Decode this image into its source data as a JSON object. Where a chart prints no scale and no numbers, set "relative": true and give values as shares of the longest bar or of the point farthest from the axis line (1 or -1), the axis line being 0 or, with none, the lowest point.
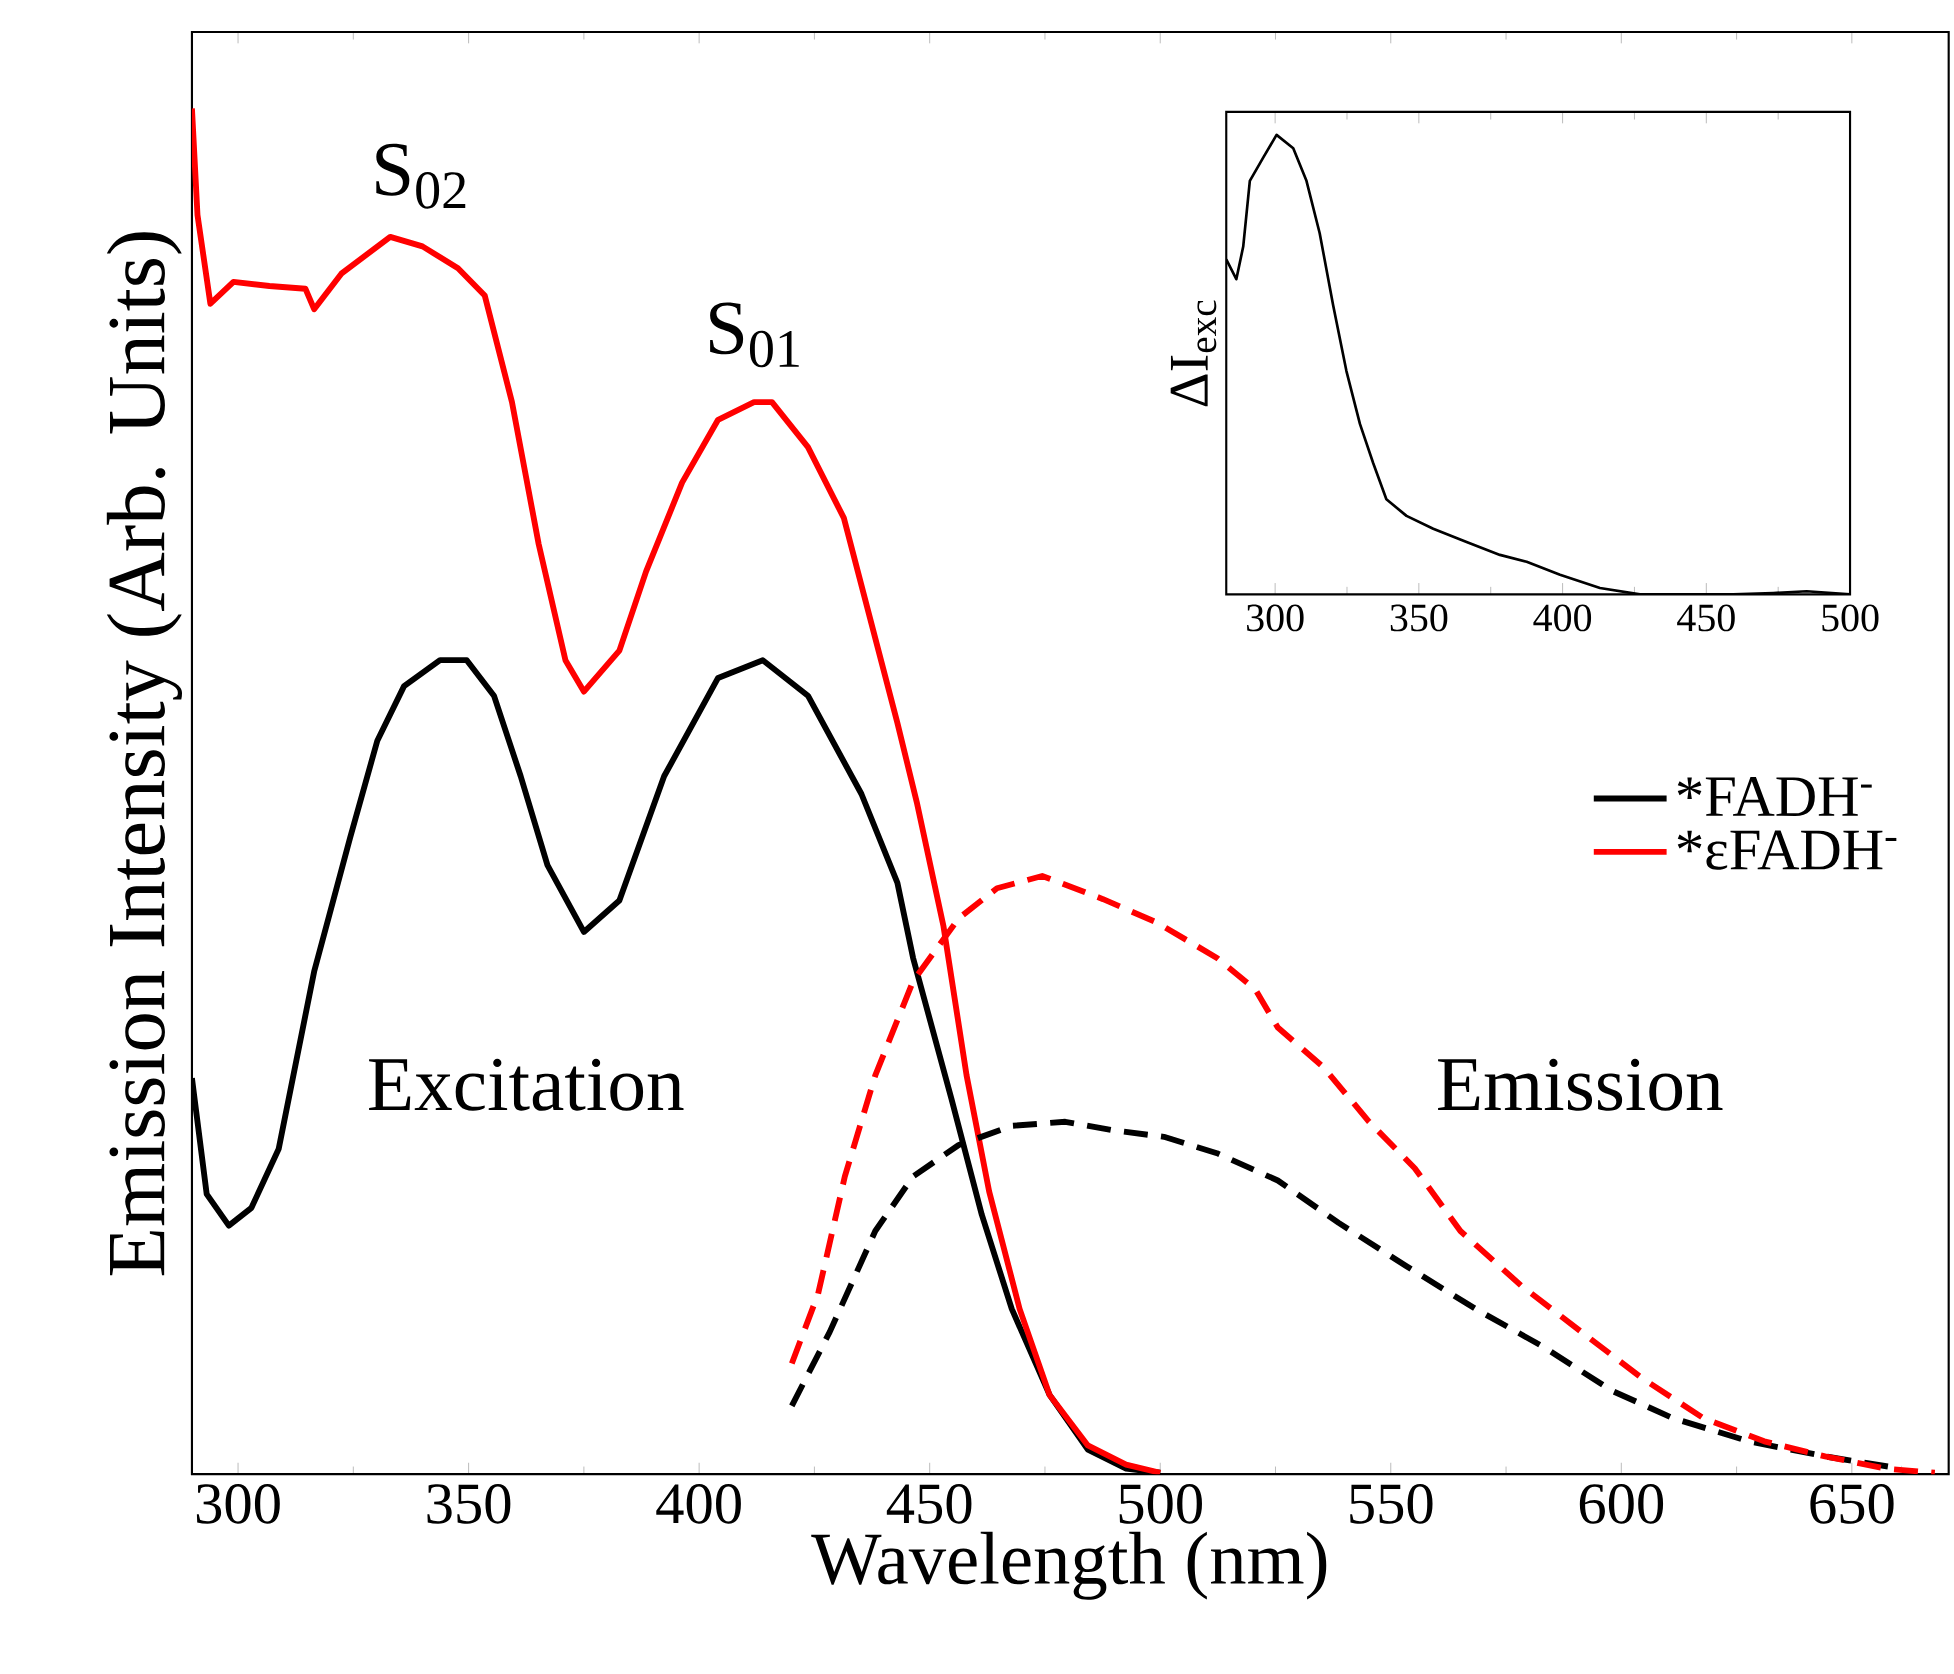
{
  "chart_data": [
    {
      "type": "line",
      "relative": true,
      "xlabel": "Wavelength (nm)",
      "ylabel": "Emission Intensity (Arb. Units)",
      "xlim": [
        290,
        671
      ],
      "xticks": [
        300,
        350,
        400,
        450,
        500,
        550,
        600,
        650
      ],
      "legend": "right",
      "annotations": [
        "S$_{02}$",
        "S$_{01}$",
        "Excitation",
        "Emission"
      ],
      "series": [
        {
          "name": "*FADH$^{-}$",
          "color": "#000000",
          "line_style": "solid",
          "x": [
            290,
            293.2,
            298,
            302.9,
            308.8,
            316.5,
            324.3,
            330.2,
            336,
            343.8,
            349.6,
            355.5,
            361.3,
            367.1,
            375,
            382.7,
            392.4,
            404.1,
            413.8,
            423.6,
            435.2,
            443,
            446.4,
            454.7,
            461.3,
            467.8,
            476,
            484.3,
            492.6,
            500
          ],
          "values": [
            0.29,
            0.205,
            0.182,
            0.195,
            0.238,
            0.368,
            0.466,
            0.537,
            0.577,
            0.596,
            0.596,
            0.57,
            0.511,
            0.446,
            0.397,
            0.42,
            0.511,
            0.583,
            0.596,
            0.57,
            0.498,
            0.433,
            0.378,
            0.275,
            0.19,
            0.121,
            0.058,
            0.018,
            0.004,
            0.001
          ]
        },
        {
          "name": "*εFADH$^{-}$",
          "color": "#ff0000",
          "line_style": "solid",
          "x": [
            290,
            291.2,
            294,
            299,
            306.8,
            314.6,
            316.5,
            322.4,
            333,
            340,
            347.7,
            353.5,
            359.4,
            365.2,
            371,
            375,
            382.7,
            388.5,
            396.3,
            404.1,
            411.9,
            415.8,
            423.6,
            431.4,
            443,
            447.2,
            453,
            458,
            462.9,
            469.5,
            476,
            484.3,
            492.6,
            500
          ],
          "values": [
            1.0,
            0.922,
            0.857,
            0.873,
            0.87,
            0.868,
            0.853,
            0.879,
            0.906,
            0.899,
            0.883,
            0.863,
            0.785,
            0.681,
            0.596,
            0.573,
            0.603,
            0.661,
            0.726,
            0.772,
            0.785,
            0.785,
            0.752,
            0.7,
            0.55,
            0.492,
            0.401,
            0.292,
            0.207,
            0.121,
            0.058,
            0.021,
            0.007,
            0.001
          ]
        },
        {
          "color": "#000000",
          "line_style": "dashed",
          "x": [
            420.1,
            428.3,
            438.2,
            446.4,
            456.3,
            467.8,
            479.4,
            489.3,
            500.8,
            512.3,
            525.5,
            538.7,
            553.5,
            568.4,
            583.2,
            598,
            611.2,
            627.7,
            644.2,
            660.7
          ],
          "values": [
            0.05,
            0.104,
            0.178,
            0.218,
            0.241,
            0.255,
            0.258,
            0.252,
            0.247,
            0.235,
            0.215,
            0.184,
            0.152,
            0.121,
            0.093,
            0.061,
            0.041,
            0.024,
            0.013,
            0.004
          ]
        },
        {
          "color": "#ff0000",
          "line_style": "dashed",
          "x": [
            420.1,
            425.8,
            431.6,
            438.2,
            446.4,
            456.3,
            464.6,
            474.4,
            487.6,
            499.2,
            512.3,
            520.6,
            525.5,
            535.4,
            545.3,
            555.2,
            565.1,
            578.3,
            591.4,
            604.6,
            617.8,
            631,
            644.2,
            657.4,
            668
          ],
          "values": [
            0.081,
            0.132,
            0.218,
            0.292,
            0.361,
            0.407,
            0.429,
            0.438,
            0.421,
            0.404,
            0.378,
            0.355,
            0.327,
            0.298,
            0.258,
            0.224,
            0.178,
            0.138,
            0.104,
            0.07,
            0.041,
            0.024,
            0.013,
            0.004,
            0.001
          ]
        }
      ]
    },
    {
      "type": "line",
      "relative": true,
      "ylabel": "ΔI$_{exc}$",
      "xlim": [
        283,
        500
      ],
      "xticks": [
        300,
        350,
        400,
        450,
        500
      ],
      "series": [
        {
          "color": "#000000",
          "line_style": "solid",
          "x": [
            283,
            286.5,
            288.9,
            291.2,
            295.8,
            300.5,
            306.3,
            310.9,
            315.5,
            320.2,
            324.8,
            329.5,
            334.1,
            338.7,
            345.7,
            355,
            366.6,
            378.2,
            387.5,
            399.1,
            413,
            426.9,
            443.2,
            459.4,
            473.3,
            484.9,
            500
          ],
          "values": [
            0.729,
            0.686,
            0.757,
            0.9,
            0.95,
            1,
            0.971,
            0.9,
            0.786,
            0.629,
            0.486,
            0.371,
            0.286,
            0.207,
            0.171,
            0.143,
            0.114,
            0.086,
            0.071,
            0.043,
            0.014,
            0,
            0,
            0,
            0.003,
            0.007,
            0
          ]
        }
      ]
    }
  ]
}
